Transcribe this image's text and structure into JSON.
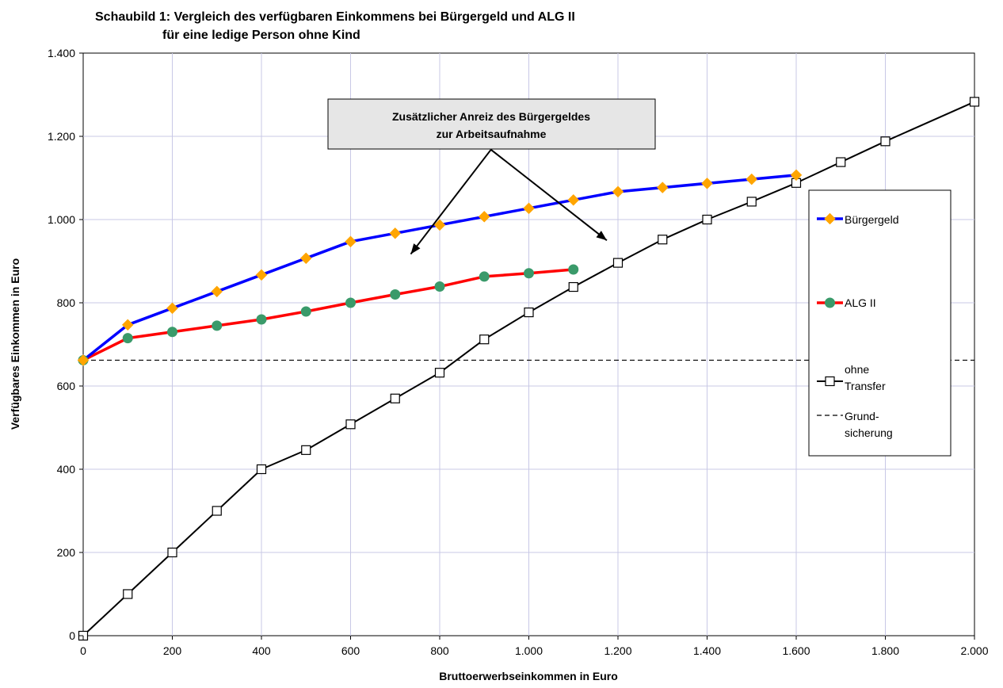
{
  "chart_data": {
    "type": "line",
    "title_line1": "Schaubild 1: Vergleich des verfügbaren Einkommens bei Bürgergeld und ALG II",
    "title_line2": "für eine ledige Person ohne Kind",
    "xlabel": "Bruttoerwerbseinkommen in Euro",
    "ylabel": "Verfügbares Einkommen in Euro",
    "xlim": [
      0,
      2000
    ],
    "ylim": [
      0,
      1400
    ],
    "x_ticks": [
      {
        "value": 0,
        "label": "0"
      },
      {
        "value": 200,
        "label": "200"
      },
      {
        "value": 400,
        "label": "400"
      },
      {
        "value": 600,
        "label": "600"
      },
      {
        "value": 800,
        "label": "800"
      },
      {
        "value": 1000,
        "label": "1.000"
      },
      {
        "value": 1200,
        "label": "1.200"
      },
      {
        "value": 1400,
        "label": "1.400"
      },
      {
        "value": 1600,
        "label": "1.600"
      },
      {
        "value": 1800,
        "label": "1.800"
      },
      {
        "value": 2000,
        "label": "2.000"
      }
    ],
    "y_ticks": [
      {
        "value": 0,
        "label": "0"
      },
      {
        "value": 200,
        "label": "200"
      },
      {
        "value": 400,
        "label": "400"
      },
      {
        "value": 600,
        "label": "600"
      },
      {
        "value": 800,
        "label": "800"
      },
      {
        "value": 1000,
        "label": "1.000"
      },
      {
        "value": 1200,
        "label": "1.200"
      },
      {
        "value": 1400,
        "label": "1.400"
      }
    ],
    "grid": true,
    "legend_position": "right",
    "series": [
      {
        "name": "Bürgergeld",
        "color": "#0000ff",
        "marker": "diamond",
        "marker_color": "#ffa500",
        "x": [
          0,
          100,
          200,
          300,
          400,
          500,
          600,
          700,
          800,
          900,
          1000,
          1100,
          1200,
          1300,
          1400,
          1500,
          1600
        ],
        "y": [
          662,
          747,
          787,
          827,
          867,
          907,
          947,
          967,
          987,
          1007,
          1027,
          1047,
          1067,
          1077,
          1087,
          1097,
          1107
        ]
      },
      {
        "name": "ALG II",
        "color": "#ff0000",
        "marker": "circle",
        "marker_color": "#3a9a6a",
        "x": [
          0,
          100,
          200,
          300,
          400,
          500,
          600,
          700,
          800,
          900,
          1000,
          1100
        ],
        "y": [
          662,
          715,
          730,
          745,
          760,
          779,
          800,
          820,
          839,
          863,
          871,
          880
        ]
      },
      {
        "name_line1": "ohne",
        "name_line2": "Transfer",
        "color": "#000000",
        "marker": "square",
        "marker_color": "#ffffff",
        "x": [
          0,
          100,
          200,
          300,
          400,
          500,
          600,
          700,
          800,
          900,
          1000,
          1100,
          1200,
          1300,
          1400,
          1500,
          1600,
          1700,
          1800,
          2000
        ],
        "y": [
          0,
          100,
          200,
          300,
          400,
          446,
          508,
          570,
          632,
          712,
          777,
          838,
          896,
          952,
          1000,
          1043,
          1088,
          1138,
          1188,
          1283
        ]
      }
    ],
    "reference_line": {
      "name_line1": "Grund-",
      "name_line2": "sicherung",
      "y": 662,
      "color": "#000000",
      "style": "dashed"
    },
    "annotation": {
      "text_line1": "Zusätzlicher Anreiz des Bürgergeldes",
      "text_line2": "zur Arbeitsaufnahme",
      "box_color": "#e6e6e6",
      "origin": [
        915,
        1168
      ],
      "arrow_targets": [
        [
          735,
          917
        ],
        [
          1175,
          950
        ]
      ]
    }
  }
}
